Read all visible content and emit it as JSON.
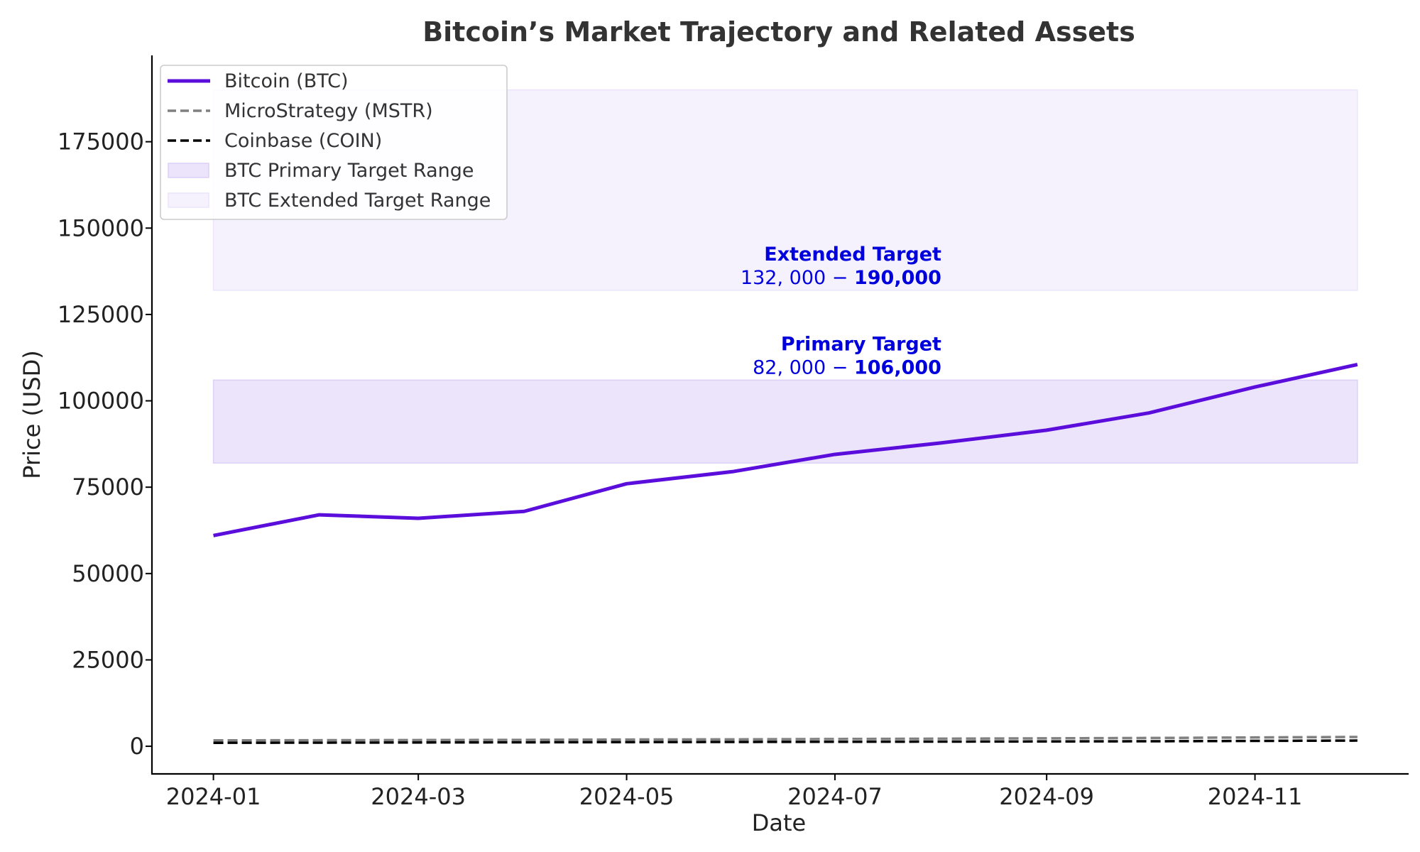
{
  "chart_data": {
    "type": "line",
    "title": "Bitcoin’s Market Trajectory and Related Assets",
    "xlabel": "Date",
    "ylabel": "Price (USD)",
    "x": [
      "2024-01",
      "2024-02",
      "2024-03",
      "2024-04",
      "2024-05",
      "2024-06",
      "2024-07",
      "2024-08",
      "2024-09",
      "2024-10",
      "2024-11",
      "2024-12"
    ],
    "x_ticks": [
      "2024-01",
      "2024-03",
      "2024-05",
      "2024-07",
      "2024-09",
      "2024-11"
    ],
    "y_ticks": [
      0,
      25000,
      50000,
      75000,
      100000,
      125000,
      150000,
      175000
    ],
    "ylim": [
      -8000,
      200000
    ],
    "xlim": [
      "2023-12-14",
      "2024-12-16"
    ],
    "grid": false,
    "legend_position": "top-left",
    "series": [
      {
        "name": "Bitcoin (BTC)",
        "style": "solid",
        "color": "#5a0ddb",
        "values": [
          61000,
          67000,
          66000,
          68000,
          76000,
          79500,
          84500,
          87800,
          91500,
          96500,
          104000,
          110500
        ]
      },
      {
        "name": "MicroStrategy (MSTR)",
        "style": "dashed",
        "color": "#808080",
        "values": [
          1700,
          1750,
          1800,
          1850,
          1950,
          2000,
          2100,
          2200,
          2300,
          2400,
          2550,
          2700
        ]
      },
      {
        "name": "Coinbase (COIN)",
        "style": "dashed",
        "color": "#000000",
        "values": [
          1000,
          1050,
          1100,
          1150,
          1200,
          1250,
          1300,
          1350,
          1400,
          1450,
          1550,
          1650
        ]
      }
    ],
    "bands": [
      {
        "name": "BTC Primary Target Range",
        "y0": 82000,
        "y1": 106000,
        "x0": "2024-01",
        "x1": "2024-12",
        "color": "#ece4fb",
        "edge": "#dcd0f7"
      },
      {
        "name": "BTC Extended Target Range",
        "y0": 132000,
        "y1": 190000,
        "x0": "2024-01",
        "x1": "2024-12",
        "color": "#f6f2fd",
        "edge": "#ebe4fa"
      }
    ],
    "annotations": [
      {
        "title": "Extended Target",
        "range_low": "132, 000 − ",
        "range_high": "190,000",
        "x": "2024-07",
        "y": 132000,
        "color": "#0000dd"
      },
      {
        "title": "Primary Target",
        "range_low": "82, 000 − ",
        "range_high": "106,000",
        "x": "2024-07",
        "y": 106000,
        "color": "#0000dd"
      }
    ]
  }
}
